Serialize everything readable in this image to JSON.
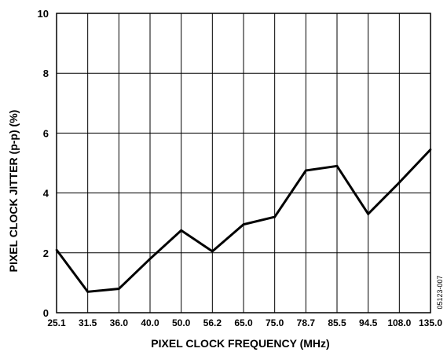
{
  "chart_data": {
    "type": "line",
    "title": "",
    "xlabel": "PIXEL CLOCK FREQUENCY (MHz)",
    "ylabel": "PIXEL CLOCK JITTER (p-p) (%)",
    "categories": [
      "25.1",
      "31.5",
      "36.0",
      "40.0",
      "50.0",
      "56.2",
      "65.0",
      "75.0",
      "78.7",
      "85.5",
      "94.5",
      "108.0",
      "135.0"
    ],
    "y_ticks": [
      "0",
      "2",
      "4",
      "6",
      "8",
      "10"
    ],
    "ylim": [
      0,
      10
    ],
    "grid": true,
    "series": [
      {
        "values": [
          2.1,
          0.7,
          0.8,
          1.8,
          2.75,
          2.05,
          2.95,
          3.2,
          4.75,
          4.9,
          3.3,
          4.35,
          5.45
        ]
      }
    ],
    "annotations": [
      "05123-007"
    ],
    "colors": {
      "line": "#000000",
      "grid": "#000000"
    }
  }
}
